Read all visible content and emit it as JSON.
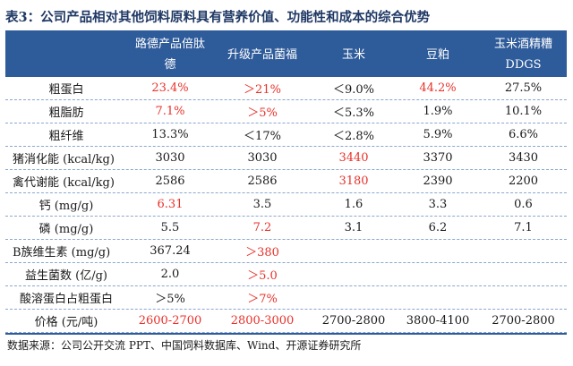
{
  "title": "表3：公司产品相对其他饲料原料具有营养价值、功能性和成本的综合优势",
  "headers": [
    "路德产品倍肽\n德",
    "升级产品菌福",
    "玉米",
    "豆粕",
    "玉米酒精糟\nDDGS"
  ],
  "rows": [
    {
      "label": "粗蛋白",
      "cells": [
        {
          "v": "23.4%",
          "red": true
        },
        {
          "v": "＞21%",
          "red": true
        },
        {
          "v": "＜9.0%",
          "red": false
        },
        {
          "v": "44.2%",
          "red": true
        },
        {
          "v": "27.5%",
          "red": false
        }
      ]
    },
    {
      "label": "粗脂肪",
      "cells": [
        {
          "v": "7.1%",
          "red": true
        },
        {
          "v": "＞5%",
          "red": true
        },
        {
          "v": "＜5.3%",
          "red": false
        },
        {
          "v": "1.9%",
          "red": false
        },
        {
          "v": "10.1%",
          "red": false
        }
      ]
    },
    {
      "label": "粗纤维",
      "cells": [
        {
          "v": "13.3%",
          "red": false
        },
        {
          "v": "＜17%",
          "red": false
        },
        {
          "v": "＜2.8%",
          "red": false
        },
        {
          "v": "5.9%",
          "red": false
        },
        {
          "v": "6.6%",
          "red": false
        }
      ]
    },
    {
      "label": "猪消化能 (kcal/kg)",
      "cells": [
        {
          "v": "3030",
          "red": false
        },
        {
          "v": "3030",
          "red": false
        },
        {
          "v": "3440",
          "red": true
        },
        {
          "v": "3370",
          "red": false
        },
        {
          "v": "3430",
          "red": false
        }
      ]
    },
    {
      "label": "禽代谢能 (kcal/kg)",
      "cells": [
        {
          "v": "2586",
          "red": false
        },
        {
          "v": "2586",
          "red": false
        },
        {
          "v": "3180",
          "red": true
        },
        {
          "v": "2390",
          "red": false
        },
        {
          "v": "2200",
          "red": false
        }
      ]
    },
    {
      "label": "钙 (mg/g)",
      "cells": [
        {
          "v": "6.31",
          "red": true
        },
        {
          "v": "3.5",
          "red": false
        },
        {
          "v": "1.6",
          "red": false
        },
        {
          "v": "3.3",
          "red": false
        },
        {
          "v": "0.6",
          "red": false
        }
      ]
    },
    {
      "label": "磷 (mg/g)",
      "cells": [
        {
          "v": "5.5",
          "red": false
        },
        {
          "v": "7.2",
          "red": true
        },
        {
          "v": "3.1",
          "red": false
        },
        {
          "v": "6.2",
          "red": false
        },
        {
          "v": "7.1",
          "red": false
        }
      ]
    },
    {
      "label": "B族维生素 (mg/g)",
      "cells": [
        {
          "v": "367.24",
          "red": false
        },
        {
          "v": "＞380",
          "red": true
        },
        {
          "v": "",
          "red": false
        },
        {
          "v": "",
          "red": false
        },
        {
          "v": "",
          "red": false
        }
      ]
    },
    {
      "label": "益生菌数 (亿/g)",
      "cells": [
        {
          "v": "2.0",
          "red": false
        },
        {
          "v": "＞5.0",
          "red": true
        },
        {
          "v": "",
          "red": false
        },
        {
          "v": "",
          "red": false
        },
        {
          "v": "",
          "red": false
        }
      ]
    },
    {
      "label": "酸溶蛋白占粗蛋白",
      "cells": [
        {
          "v": "＞5%",
          "red": false
        },
        {
          "v": "＞7%",
          "red": true
        },
        {
          "v": "",
          "red": false
        },
        {
          "v": "",
          "red": false
        },
        {
          "v": "",
          "red": false
        }
      ]
    },
    {
      "label": "价格 (元/吨)",
      "cells": [
        {
          "v": "2600-2700",
          "red": true
        },
        {
          "v": "2800-3000",
          "red": true
        },
        {
          "v": "2700-2800",
          "red": false
        },
        {
          "v": "3800-4100",
          "red": false
        },
        {
          "v": "2700-2800",
          "red": false
        }
      ]
    }
  ],
  "source": "数据来源：公司公开交流 PPT、中国饲料数据库、Wind、开源证券研究所",
  "colors": {
    "header_bg": "#2e5b9a",
    "highlight": "#e8312a",
    "title": "#1f3864"
  }
}
